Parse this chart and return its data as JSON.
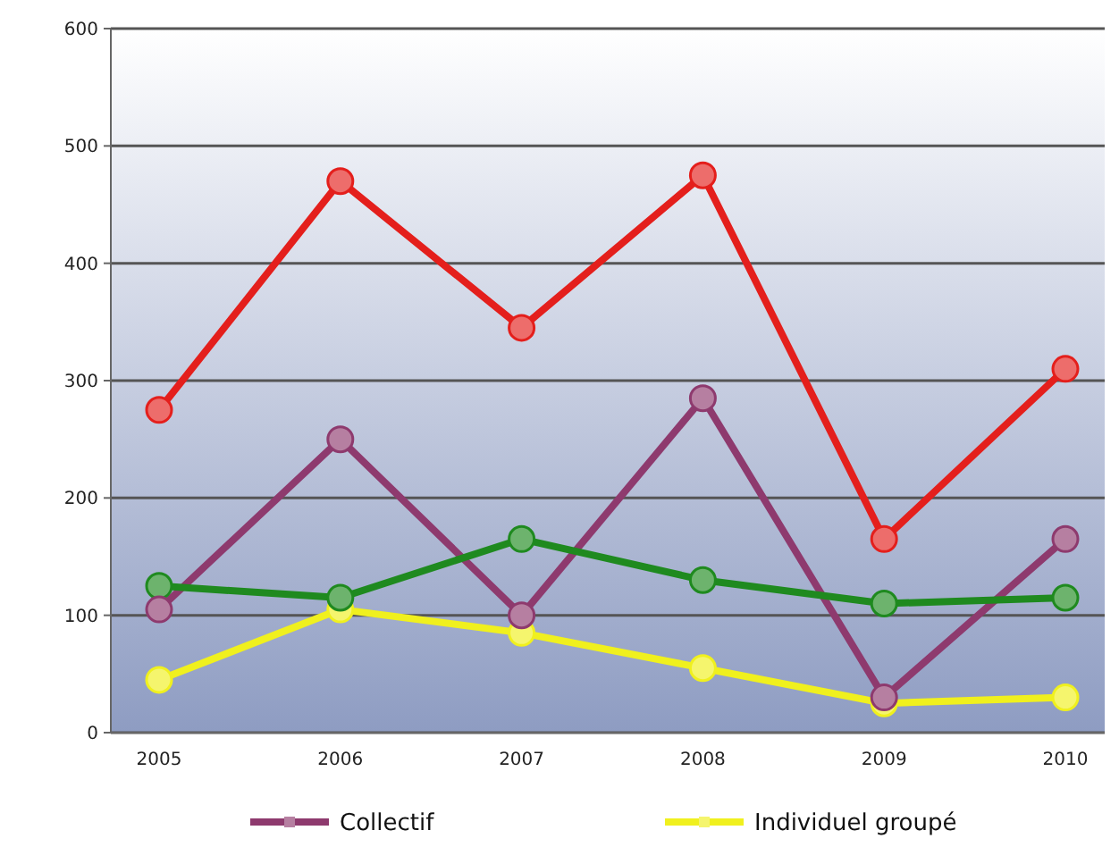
{
  "chart_data": {
    "type": "line",
    "categories": [
      "2005",
      "2006",
      "2007",
      "2008",
      "2009",
      "2010"
    ],
    "series": [
      {
        "color": "#e41f1c",
        "values": [
          275,
          470,
          345,
          475,
          165,
          310
        ]
      },
      {
        "name": "Collectif",
        "color": "#8e3a6e",
        "values": [
          105,
          250,
          100,
          285,
          30,
          165
        ]
      },
      {
        "color": "#1f8a1f",
        "values": [
          125,
          115,
          165,
          130,
          110,
          115
        ]
      },
      {
        "name": "Individuel groupé",
        "color": "#f0f01e",
        "values": [
          45,
          105,
          85,
          55,
          25,
          30
        ]
      }
    ],
    "ylim": [
      0,
      600
    ],
    "yticks": [
      0,
      100,
      200,
      300,
      400,
      500,
      600
    ],
    "grid": "y",
    "legend": "bottom",
    "marker": "circle",
    "line_style": "solid"
  }
}
